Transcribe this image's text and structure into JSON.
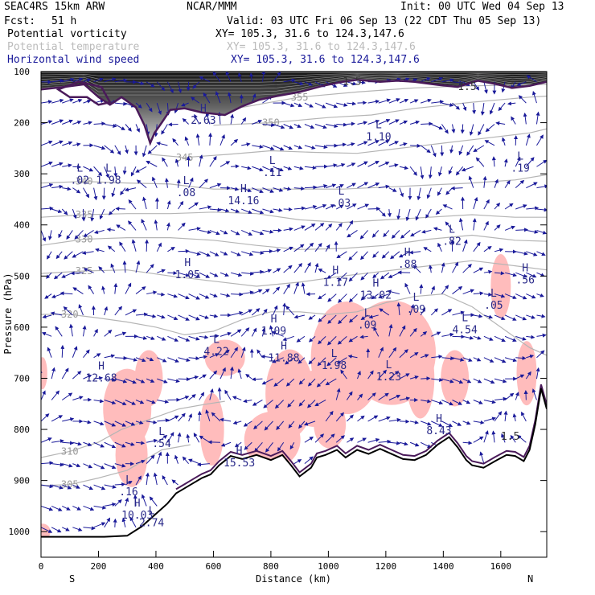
{
  "header": {
    "model": "SEAC4RS 15km ARW",
    "center": "NCAR/MMM",
    "init": "Init: 00 UTC Wed 04 Sep 13",
    "fcst_label": "Fcst:",
    "fcst_value": "51 h",
    "valid": "Valid: 03 UTC Fri 06 Sep 13 (22 CDT Thu 05 Sep 13)",
    "fields": [
      {
        "name": "Potential vorticity",
        "xy": "XY= 105.3, 31.6 to 124.3,147.6",
        "color": "#000000"
      },
      {
        "name": "Potential temperature",
        "xy": "XY= 105.3, 31.6 to 124.3,147.6",
        "color": "#bbbbbb"
      },
      {
        "name": "Horizontal wind speed",
        "xy": "XY= 105.3, 31.6 to 124.3,147.6",
        "color": "#1a1a9a"
      }
    ]
  },
  "chart_data": {
    "type": "cross-section",
    "xlabel": "Distance (km)",
    "ylabel": "Pressure (hPa)",
    "xlim": [
      0,
      1760
    ],
    "ylim": [
      1050,
      100
    ],
    "x_ticks": [
      0,
      200,
      400,
      600,
      800,
      1000,
      1200,
      1400,
      1600
    ],
    "y_ticks": [
      100,
      200,
      300,
      400,
      500,
      600,
      700,
      800,
      900,
      1000
    ],
    "x_end_labels": {
      "left": "S",
      "right": "N"
    },
    "theta_contours": [
      {
        "label": "305",
        "points": [
          [
            0,
            910
          ],
          [
            100,
            908
          ],
          [
            200,
            895
          ],
          [
            300,
            880
          ],
          [
            360,
            860
          ],
          [
            420,
            840
          ],
          [
            520,
            830
          ]
        ]
      },
      {
        "label": "310",
        "points": [
          [
            0,
            855
          ],
          [
            100,
            843
          ],
          [
            200,
            825
          ],
          [
            280,
            800
          ],
          [
            380,
            780
          ],
          [
            480,
            760
          ],
          [
            580,
            750
          ],
          [
            640,
            745
          ]
        ]
      },
      {
        "label": "320",
        "points": [
          [
            0,
            575
          ],
          [
            100,
            575
          ],
          [
            200,
            582
          ],
          [
            300,
            590
          ],
          [
            400,
            600
          ],
          [
            500,
            615
          ],
          [
            600,
            608
          ],
          [
            700,
            585
          ],
          [
            800,
            570
          ],
          [
            900,
            570
          ],
          [
            1000,
            575
          ],
          [
            1100,
            570
          ],
          [
            1200,
            552
          ],
          [
            1300,
            540
          ],
          [
            1400,
            535
          ],
          [
            1500,
            560
          ],
          [
            1600,
            600
          ],
          [
            1700,
            640
          ],
          [
            1760,
            655
          ]
        ]
      },
      {
        "label": "325",
        "points": [
          [
            0,
            495
          ],
          [
            150,
            490
          ],
          [
            300,
            488
          ],
          [
            450,
            500
          ],
          [
            600,
            510
          ],
          [
            750,
            520
          ],
          [
            900,
            512
          ],
          [
            1050,
            500
          ],
          [
            1200,
            490
          ],
          [
            1350,
            480
          ],
          [
            1500,
            470
          ],
          [
            1650,
            480
          ],
          [
            1760,
            488
          ]
        ]
      },
      {
        "label": "330",
        "points": [
          [
            0,
            440
          ],
          [
            150,
            428
          ],
          [
            300,
            425
          ],
          [
            450,
            425
          ],
          [
            600,
            430
          ],
          [
            750,
            440
          ],
          [
            900,
            448
          ],
          [
            1050,
            446
          ],
          [
            1200,
            440
          ],
          [
            1350,
            428
          ],
          [
            1500,
            420
          ],
          [
            1650,
            430
          ],
          [
            1760,
            432
          ]
        ]
      },
      {
        "label": "335",
        "points": [
          [
            0,
            385
          ],
          [
            150,
            380
          ],
          [
            300,
            378
          ],
          [
            450,
            378
          ],
          [
            600,
            375
          ],
          [
            750,
            378
          ],
          [
            900,
            390
          ],
          [
            1050,
            395
          ],
          [
            1200,
            390
          ],
          [
            1350,
            385
          ],
          [
            1500,
            380
          ],
          [
            1650,
            385
          ],
          [
            1760,
            385
          ]
        ]
      },
      {
        "label": "340",
        "points": [
          [
            0,
            318
          ],
          [
            150,
            315
          ],
          [
            300,
            318
          ],
          [
            450,
            320
          ],
          [
            600,
            330
          ],
          [
            750,
            330
          ],
          [
            900,
            330
          ],
          [
            1050,
            330
          ],
          [
            1200,
            326
          ],
          [
            1350,
            322
          ],
          [
            1500,
            318
          ],
          [
            1650,
            312
          ],
          [
            1760,
            302
          ]
        ]
      },
      {
        "label": "345",
        "points": [
          [
            380,
            262
          ],
          [
            500,
            268
          ],
          [
            650,
            262
          ],
          [
            800,
            255
          ],
          [
            950,
            258
          ],
          [
            1100,
            260
          ],
          [
            1250,
            250
          ],
          [
            1400,
            240
          ],
          [
            1550,
            230
          ],
          [
            1700,
            220
          ],
          [
            1760,
            212
          ]
        ]
      },
      {
        "label": "350",
        "points": [
          [
            600,
            205
          ],
          [
            800,
            200
          ],
          [
            1000,
            190
          ],
          [
            1150,
            185
          ],
          [
            1300,
            172
          ],
          [
            1500,
            160
          ],
          [
            1700,
            150
          ],
          [
            1760,
            148
          ]
        ]
      },
      {
        "label": "355",
        "points": [
          [
            700,
            170
          ],
          [
            900,
            150
          ],
          [
            1100,
            140
          ],
          [
            1300,
            132
          ],
          [
            1500,
            128
          ],
          [
            1760,
            125
          ]
        ]
      }
    ],
    "pv_contour_label": "1.5",
    "pv_tropopause": [
      [
        0,
        135
      ],
      [
        80,
        130
      ],
      [
        150,
        125
      ],
      [
        200,
        150
      ],
      [
        240,
        165
      ],
      [
        280,
        150
      ],
      [
        330,
        170
      ],
      [
        360,
        205
      ],
      [
        380,
        240
      ],
      [
        395,
        220
      ],
      [
        420,
        200
      ],
      [
        450,
        175
      ],
      [
        500,
        172
      ],
      [
        560,
        180
      ],
      [
        640,
        185
      ],
      [
        700,
        168
      ],
      [
        760,
        155
      ],
      [
        820,
        148
      ],
      [
        900,
        140
      ],
      [
        980,
        128
      ],
      [
        1050,
        120
      ],
      [
        1100,
        116
      ],
      [
        1180,
        120
      ],
      [
        1240,
        118
      ],
      [
        1300,
        120
      ],
      [
        1380,
        126
      ],
      [
        1450,
        130
      ],
      [
        1520,
        118
      ],
      [
        1580,
        124
      ],
      [
        1640,
        132
      ],
      [
        1700,
        128
      ],
      [
        1760,
        120
      ]
    ],
    "pv_closed": [
      {
        "label": "1.5",
        "points": [
          [
            60,
            135
          ],
          [
            130,
            120
          ],
          [
            210,
            130
          ],
          [
            240,
            160
          ],
          [
            200,
            165
          ],
          [
            160,
            150
          ],
          [
            100,
            150
          ]
        ]
      }
    ],
    "terrain": [
      [
        0,
        1010
      ],
      [
        120,
        1010
      ],
      [
        220,
        1010
      ],
      [
        300,
        1008
      ],
      [
        350,
        990
      ],
      [
        400,
        965
      ],
      [
        440,
        945
      ],
      [
        470,
        925
      ],
      [
        500,
        915
      ],
      [
        530,
        905
      ],
      [
        560,
        895
      ],
      [
        590,
        888
      ],
      [
        620,
        870
      ],
      [
        660,
        852
      ],
      [
        700,
        858
      ],
      [
        750,
        850
      ],
      [
        800,
        860
      ],
      [
        840,
        850
      ],
      [
        870,
        870
      ],
      [
        900,
        892
      ],
      [
        940,
        875
      ],
      [
        960,
        855
      ],
      [
        990,
        850
      ],
      [
        1030,
        840
      ],
      [
        1060,
        855
      ],
      [
        1100,
        840
      ],
      [
        1140,
        848
      ],
      [
        1180,
        838
      ],
      [
        1220,
        848
      ],
      [
        1260,
        858
      ],
      [
        1300,
        860
      ],
      [
        1340,
        850
      ],
      [
        1380,
        830
      ],
      [
        1420,
        815
      ],
      [
        1450,
        835
      ],
      [
        1480,
        860
      ],
      [
        1500,
        870
      ],
      [
        1540,
        875
      ],
      [
        1580,
        862
      ],
      [
        1620,
        850
      ],
      [
        1650,
        852
      ],
      [
        1680,
        862
      ],
      [
        1700,
        840
      ],
      [
        1720,
        790
      ],
      [
        1740,
        720
      ],
      [
        1760,
        760
      ]
    ],
    "wind_extrema": [
      {
        "type": "L",
        "value": ".02",
        "x": 135,
        "p": 305
      },
      {
        "type": "L",
        "value": "1.98",
        "x": 235,
        "p": 305
      },
      {
        "type": "H",
        "value": "2.63",
        "x": 565,
        "p": 188
      },
      {
        "type": "L",
        "value": ".08",
        "x": 505,
        "p": 330
      },
      {
        "type": "H",
        "value": "14.16",
        "x": 705,
        "p": 345
      },
      {
        "type": "L",
        "value": ".11",
        "x": 805,
        "p": 290
      },
      {
        "type": "L",
        "value": "1.10",
        "x": 1175,
        "p": 220
      },
      {
        "type": "L",
        "value": ".03",
        "x": 1045,
        "p": 350
      },
      {
        "type": "L",
        "value": ".19",
        "x": 1668,
        "p": 282
      },
      {
        "type": "L",
        "value": ".82",
        "x": 1430,
        "p": 425
      },
      {
        "type": "H",
        "value": "1.05",
        "x": 510,
        "p": 490
      },
      {
        "type": "H",
        "value": "1.17",
        "x": 1025,
        "p": 505
      },
      {
        "type": "H",
        "value": ".88",
        "x": 1275,
        "p": 470
      },
      {
        "type": "H",
        "value": "13.02",
        "x": 1165,
        "p": 530
      },
      {
        "type": "L",
        "value": ".09",
        "x": 1305,
        "p": 558
      },
      {
        "type": "H",
        "value": ".56",
        "x": 1685,
        "p": 500
      },
      {
        "type": "L",
        "value": ".05",
        "x": 1575,
        "p": 550
      },
      {
        "type": "L",
        "value": ".09",
        "x": 1135,
        "p": 588
      },
      {
        "type": "H",
        "value": "1.09",
        "x": 810,
        "p": 600
      },
      {
        "type": "L",
        "value": "4.54",
        "x": 1475,
        "p": 598
      },
      {
        "type": "L",
        "value": "4.22",
        "x": 610,
        "p": 640
      },
      {
        "type": "H",
        "value": "11.88",
        "x": 845,
        "p": 653
      },
      {
        "type": "L",
        "value": "1.98",
        "x": 1020,
        "p": 668
      },
      {
        "type": "L",
        "value": "1.23",
        "x": 1210,
        "p": 690
      },
      {
        "type": "H",
        "value": "12.68",
        "x": 210,
        "p": 692
      },
      {
        "type": "L",
        "value": ".54",
        "x": 420,
        "p": 820
      },
      {
        "type": "H",
        "value": "8.43",
        "x": 1385,
        "p": 795
      },
      {
        "type": "H",
        "value": "15.53",
        "x": 690,
        "p": 858
      },
      {
        "type": "L",
        "value": ".16",
        "x": 305,
        "p": 915
      },
      {
        "type": "H",
        "value": "10.03",
        "x": 335,
        "p": 960
      },
      {
        "type": "L",
        "value": "2.74",
        "x": 385,
        "p": 975
      }
    ],
    "pv_shading": {
      "region": "upper",
      "p_max": 150
    },
    "pv_shading_pink": [
      {
        "x": 300,
        "p": 760,
        "w": 60,
        "h": 100
      },
      {
        "x": 375,
        "p": 700,
        "w": 35,
        "h": 70
      },
      {
        "x": 315,
        "p": 850,
        "w": 40,
        "h": 80
      },
      {
        "x": 595,
        "p": 800,
        "w": 30,
        "h": 90
      },
      {
        "x": 640,
        "p": 660,
        "w": 50,
        "h": 45
      },
      {
        "x": 805,
        "p": 820,
        "w": 70,
        "h": 70
      },
      {
        "x": 865,
        "p": 730,
        "w": 60,
        "h": 110
      },
      {
        "x": 950,
        "p": 740,
        "w": 60,
        "h": 70
      },
      {
        "x": 1065,
        "p": 660,
        "w": 90,
        "h": 140
      },
      {
        "x": 1005,
        "p": 790,
        "w": 40,
        "h": 60
      },
      {
        "x": 1220,
        "p": 650,
        "w": 110,
        "h": 130
      },
      {
        "x": 1320,
        "p": 700,
        "w": 35,
        "h": 100
      },
      {
        "x": 1440,
        "p": 700,
        "w": 35,
        "h": 70
      },
      {
        "x": 1600,
        "p": 520,
        "w": 25,
        "h": 80
      },
      {
        "x": 1690,
        "p": 690,
        "w": 25,
        "h": 80
      },
      {
        "x": 5,
        "p": 690,
        "w": 12,
        "h": 40
      },
      {
        "x": 5,
        "p": 1000,
        "w": 20,
        "h": 20
      }
    ]
  }
}
